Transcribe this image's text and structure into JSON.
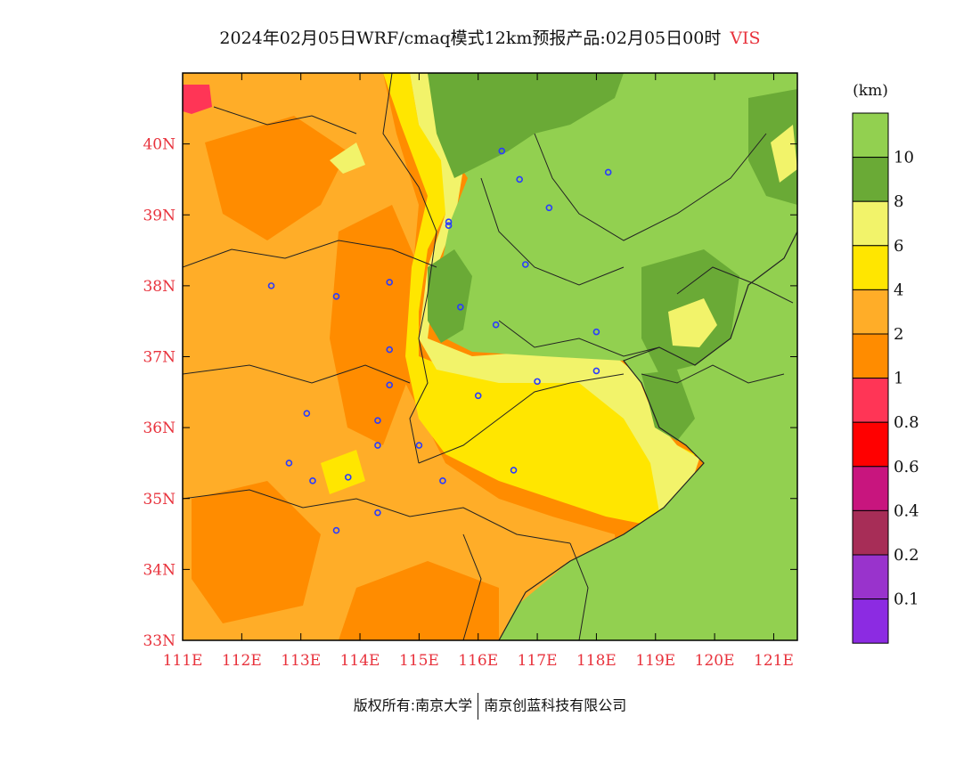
{
  "title": {
    "main": "2024年02月05日WRF/cmaq模式12km预报产品:02月05日00时",
    "variable": "VIS"
  },
  "footer": {
    "left": "版权所有:南京大学",
    "right": "南京创蓝科技有限公司"
  },
  "chart_data": {
    "type": "heatmap",
    "map_extent": {
      "lon": [
        111,
        121.4
      ],
      "lat": [
        33,
        41
      ]
    },
    "x_ticks": [
      "111E",
      "112E",
      "113E",
      "114E",
      "115E",
      "116E",
      "117E",
      "118E",
      "119E",
      "120E",
      "121E"
    ],
    "x_tick_values": [
      111,
      112,
      113,
      114,
      115,
      116,
      117,
      118,
      119,
      120,
      121
    ],
    "y_ticks": [
      "33N",
      "34N",
      "35N",
      "36N",
      "37N",
      "38N",
      "39N",
      "40N"
    ],
    "y_tick_values": [
      33,
      34,
      35,
      36,
      37,
      38,
      39,
      40
    ],
    "colorbar": {
      "unit": "(km)",
      "levels": [
        "10",
        "8",
        "6",
        "4",
        "2",
        "1",
        "0.8",
        "0.6",
        "0.4",
        "0.2",
        "0.1"
      ],
      "colors": [
        "#92d050",
        "#6aaa36",
        "#f2f36a",
        "#ffe600",
        "#ffad28",
        "#ff8c00",
        "#ff3556",
        "#ff0000",
        "#c8157e",
        "#a72d57",
        "#9933cc",
        "#8c2be2"
      ]
    },
    "city_markers": [
      [
        116.4,
        39.9
      ],
      [
        117.2,
        39.1
      ],
      [
        118.2,
        39.6
      ],
      [
        116.7,
        39.5
      ],
      [
        115.5,
        38.9
      ],
      [
        115.5,
        38.85
      ],
      [
        116.8,
        38.3
      ],
      [
        112.5,
        38.0
      ],
      [
        113.6,
        37.85
      ],
      [
        114.5,
        38.05
      ],
      [
        115.7,
        37.7
      ],
      [
        116.3,
        37.45
      ],
      [
        118.0,
        37.35
      ],
      [
        118.0,
        36.8
      ],
      [
        117.0,
        36.65
      ],
      [
        116.0,
        36.45
      ],
      [
        114.5,
        37.1
      ],
      [
        114.5,
        36.6
      ],
      [
        113.1,
        36.2
      ],
      [
        114.3,
        36.1
      ],
      [
        114.3,
        35.75
      ],
      [
        115.0,
        35.75
      ],
      [
        112.8,
        35.5
      ],
      [
        113.2,
        35.25
      ],
      [
        113.8,
        35.3
      ],
      [
        115.4,
        35.25
      ],
      [
        116.6,
        35.4
      ],
      [
        114.3,
        34.8
      ],
      [
        113.6,
        34.55
      ]
    ]
  }
}
